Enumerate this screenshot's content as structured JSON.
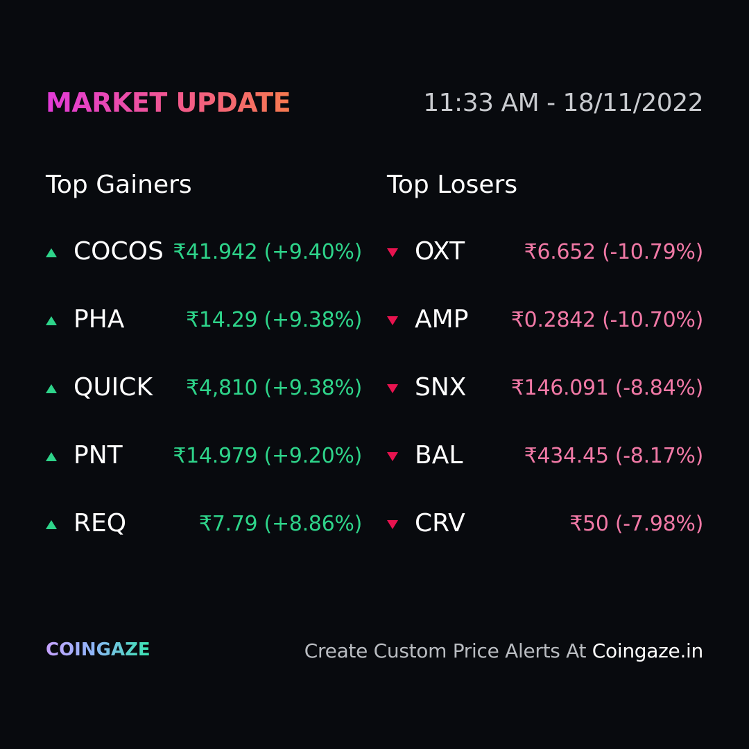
{
  "header": {
    "title": "MARKET UPDATE",
    "timestamp": "11:33 AM - 18/11/2022"
  },
  "gainers": {
    "heading": "Top Gainers",
    "arrow_color": "#2ed48a",
    "items": [
      {
        "symbol": "COCOS",
        "value": "₹41.942 (+9.40%)"
      },
      {
        "symbol": "PHA",
        "value": "₹14.29 (+9.38%)"
      },
      {
        "symbol": "QUICK",
        "value": "₹4,810 (+9.38%)"
      },
      {
        "symbol": "PNT",
        "value": "₹14.979 (+9.20%)"
      },
      {
        "symbol": "REQ",
        "value": "₹7.79 (+8.86%)"
      }
    ]
  },
  "losers": {
    "heading": "Top Losers",
    "arrow_color": "#e8134f",
    "items": [
      {
        "symbol": "OXT",
        "value": "₹6.652 (-10.79%)"
      },
      {
        "symbol": "AMP",
        "value": "₹0.2842 (-10.70%)"
      },
      {
        "symbol": "SNX",
        "value": "₹146.091 (-8.84%)"
      },
      {
        "symbol": "BAL",
        "value": "₹434.45 (-8.17%)"
      },
      {
        "symbol": "CRV",
        "value": "₹50 (-7.98%)"
      }
    ]
  },
  "footer": {
    "brand": "COINGAZE",
    "cta_text": "Create Custom Price Alerts At ",
    "cta_site": "Coingaze.in"
  },
  "colors": {
    "background": "#080a0e",
    "gain": "#2ed48a",
    "loss": "#f179a6",
    "title_gradient": [
      "#e23ad9",
      "#f77a4f"
    ],
    "brand_gradient": [
      "#c7a2ff",
      "#39e4b0"
    ]
  }
}
